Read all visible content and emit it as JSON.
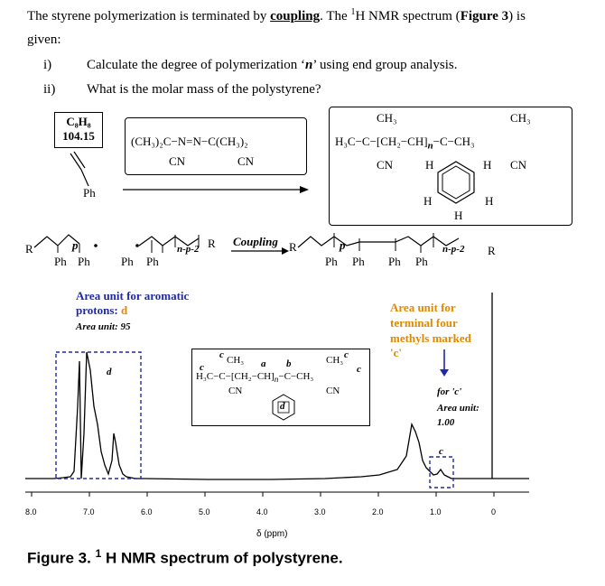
{
  "question": {
    "line1_a": "The styrene polymerization is terminated by ",
    "line1_b": "coupling",
    "line1_c": ". The ",
    "line1_sup": "1",
    "line1_d": "H NMR spectrum (",
    "line1_fig": "Figure 3",
    "line1_e": ") is",
    "line2": "given:",
    "items": [
      {
        "num": "i)",
        "text_a": "Calculate the degree of polymerization ‘",
        "text_n": "n",
        "text_b": "’ using end group analysis."
      },
      {
        "num": "ii)",
        "text": "What is the molar mass of the polystyrene?"
      }
    ]
  },
  "scheme": {
    "styrene_formula": "C₈H₈",
    "styrene_mass": "104.15",
    "styrene_ph": "Ph",
    "initiator_top": "(CH₃)₂C−N=N−C(CH₃)₂",
    "initiator_cn1": "CN",
    "initiator_cn2": "CN",
    "product_ch3_left": "CH₃",
    "product_ch3_right": "CH₃",
    "product_main": "H₃C−C−[CH₂−CH]",
    "product_n": "n",
    "product_right": "−C−CH₃",
    "product_cn_left": "CN",
    "product_cn_right": "CN",
    "product_h": "H",
    "coupling_label": "Coupling",
    "radical_left_r": "R",
    "radical_left_p": "p",
    "radical_ph1": "Ph",
    "radical_ph2": "Ph",
    "radical_ph3": "Ph",
    "radical_ph4": "Ph",
    "radical_np2": "n-p-2",
    "radical_r2": "R",
    "prod_r": "R",
    "prod_p": "p",
    "prod_ph1": "Ph",
    "prod_ph2": "Ph",
    "prod_ph3": "Ph",
    "prod_ph4": "Ph",
    "prod_np2": "n-p-2",
    "prod_r2": "R"
  },
  "spectrum": {
    "aromatic_label_1": "Area unit for aromatic",
    "aromatic_label_2": "protons: ",
    "aromatic_label_d": "d",
    "aromatic_area": "Area unit: 95",
    "terminal_label_1": "Area unit for",
    "terminal_label_2": "terminal four",
    "terminal_label_3": "methyls marked",
    "terminal_label_4": "'c'",
    "for_c": "for 'c'",
    "area_unit": "Area unit:",
    "area_value": "1.00",
    "peak_d": "d",
    "peak_c": "c",
    "inset_c1": "c",
    "inset_c2": "c",
    "inset_c3": "c",
    "inset_c4": "c",
    "inset_a": "a",
    "inset_b": "b",
    "inset_ch3_l": "CH₃",
    "inset_ch3_r": "CH₃",
    "inset_main": "H₃C−C−[CH₂−CH]",
    "inset_n": "n",
    "inset_right": "−C−CH₃",
    "inset_cn_l": "CN",
    "inset_cn_r": "CN",
    "inset_ring": "d",
    "axis_ticks": [
      "8.0",
      "7.0",
      "6.0",
      "5.0",
      "4.0",
      "3.0",
      "2.0",
      "1.0",
      "0"
    ],
    "axis_label": "δ (ppm)",
    "colors": {
      "blue": "#1f2aa8",
      "orange": "#e08a00"
    }
  },
  "caption": {
    "prefix": "Figure 3. ",
    "sup": "1",
    "text": " H NMR spectrum of polystyrene."
  }
}
